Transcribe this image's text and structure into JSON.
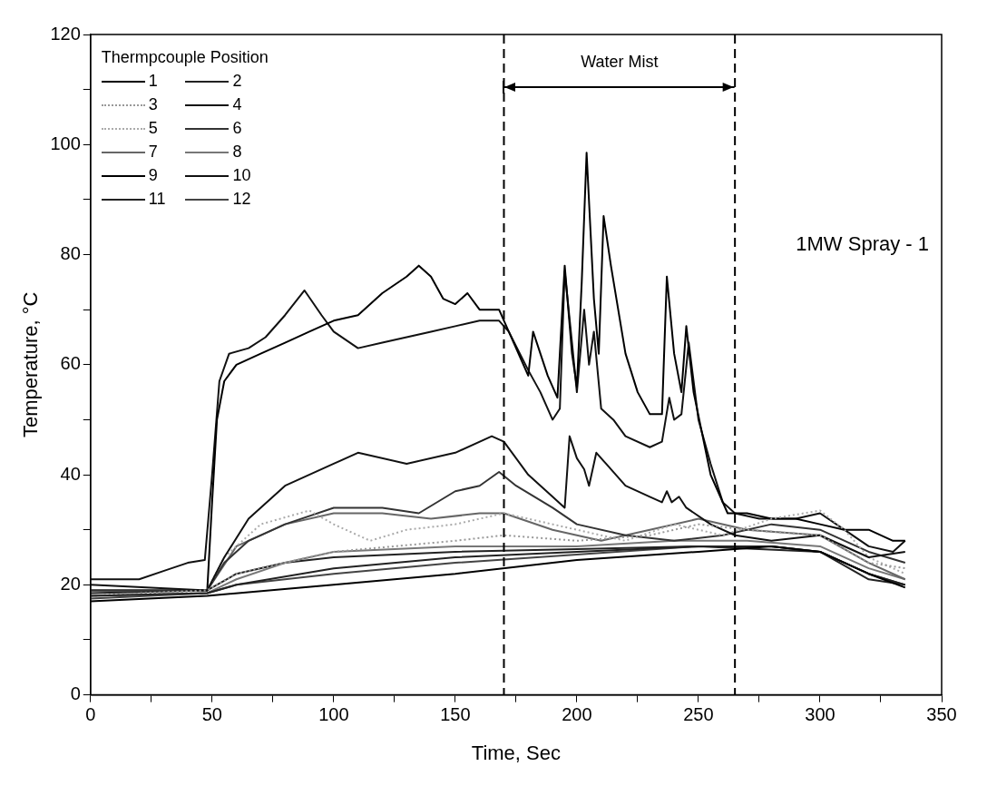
{
  "chart_data": {
    "type": "line",
    "xlabel": "Time, Sec",
    "ylabel": "Temperature, °C",
    "legend_title": "Thermpcouple Position",
    "legend": "top left",
    "grid": false,
    "marker": "none",
    "line_style": "solid",
    "xlim": [
      0,
      350
    ],
    "xticks": [
      0,
      {
        "value": 25,
        "label": null
      },
      50,
      {
        "value": 75,
        "label": null
      },
      100,
      {
        "value": 125,
        "label": null
      },
      150,
      {
        "value": 175,
        "label": null
      },
      200,
      {
        "value": 225,
        "label": null
      },
      250,
      {
        "value": 275,
        "label": null
      },
      300,
      {
        "value": 325,
        "label": null
      },
      350
    ],
    "ylim": [
      0,
      120
    ],
    "yticks": [
      0,
      {
        "value": 10,
        "label": null
      },
      20,
      {
        "value": 30,
        "label": null
      },
      40,
      {
        "value": 50,
        "label": null
      },
      60,
      {
        "value": 70,
        "label": null
      },
      80,
      {
        "value": 90,
        "label": null
      },
      100,
      {
        "value": 110,
        "label": null
      },
      120
    ],
    "ref_lines": [
      {
        "axis": "x",
        "value": 170,
        "line_style": "dashed",
        "color": "#000000"
      },
      {
        "axis": "x",
        "value": 265,
        "line_style": "dashed",
        "color": "#000000"
      }
    ],
    "annotations": [
      "Water Mist",
      "1MW Spray - 1"
    ],
    "series": [
      {
        "name": "1",
        "color": "#000000",
        "x": [
          0,
          48,
          100,
          150,
          200,
          250,
          280,
          300,
          320,
          335
        ],
        "values": [
          17,
          18,
          20,
          22,
          24.5,
          26,
          27,
          26,
          22,
          19.5
        ]
      },
      {
        "name": "2",
        "color": "#222222",
        "x": [
          0,
          48,
          60,
          100,
          150,
          200,
          250,
          300,
          320,
          335
        ],
        "values": [
          18,
          18.5,
          20,
          23,
          25,
          26,
          27,
          26,
          21,
          20
        ]
      },
      {
        "name": "3",
        "color": "#999999",
        "line_style": "dotted",
        "x": [
          0,
          48,
          60,
          100,
          150,
          170,
          200,
          230,
          250,
          270,
          300,
          320,
          335
        ],
        "values": [
          18,
          19,
          22,
          26,
          28,
          29,
          28,
          29,
          31,
          30,
          29,
          24,
          23
        ]
      },
      {
        "name": "4",
        "color": "#111111",
        "x": [
          0,
          48,
          55,
          65,
          80,
          100,
          110,
          130,
          150,
          165,
          170,
          180,
          190,
          195,
          197,
          200,
          203,
          205,
          208,
          212,
          220,
          230,
          235,
          237,
          239,
          242,
          245,
          255,
          265,
          280,
          300,
          320,
          335
        ],
        "values": [
          20,
          19,
          25,
          32,
          38,
          42,
          44,
          42,
          44,
          47,
          46,
          40,
          36,
          34,
          47,
          43,
          41,
          38,
          44,
          42,
          38,
          36,
          35,
          37,
          35,
          36,
          34,
          31,
          29,
          28,
          29,
          25,
          26
        ]
      },
      {
        "name": "5",
        "color": "#aaaaaa",
        "line_style": "dotted",
        "x": [
          0,
          48,
          55,
          70,
          90,
          100,
          115,
          130,
          150,
          170,
          180,
          200,
          220,
          240,
          260,
          280,
          300,
          310,
          320,
          335
        ],
        "values": [
          18,
          19,
          25,
          31,
          33.5,
          31,
          28,
          30,
          31,
          33,
          32,
          30,
          28,
          31,
          29,
          32,
          33.5,
          30,
          25,
          22
        ]
      },
      {
        "name": "6",
        "color": "#333333",
        "x": [
          0,
          48,
          55,
          65,
          80,
          100,
          120,
          135,
          150,
          160,
          168,
          175,
          190,
          200,
          220,
          240,
          260,
          280,
          300,
          320,
          335
        ],
        "values": [
          19,
          19,
          24,
          28,
          31,
          34,
          34,
          33,
          37,
          38,
          40.5,
          38,
          34,
          31,
          29,
          28,
          29,
          31,
          30,
          26,
          24
        ]
      },
      {
        "name": "7",
        "color": "#666666",
        "x": [
          0,
          48,
          60,
          80,
          100,
          120,
          140,
          160,
          170,
          190,
          210,
          230,
          250,
          270,
          300,
          320,
          335
        ],
        "values": [
          19,
          19,
          27,
          31,
          33,
          33,
          32,
          33,
          33,
          30,
          28,
          30,
          32,
          30,
          29,
          24,
          21
        ]
      },
      {
        "name": "8",
        "color": "#777777",
        "x": [
          0,
          48,
          60,
          80,
          100,
          150,
          170,
          200,
          240,
          270,
          300,
          320,
          335
        ],
        "values": [
          18,
          18.5,
          21,
          24,
          26,
          27,
          27,
          27,
          28,
          28,
          27,
          23,
          21
        ]
      },
      {
        "name": "9",
        "color": "#000000",
        "x": [
          0,
          48,
          50,
          52,
          55,
          60,
          70,
          80,
          90,
          100,
          110,
          120,
          130,
          135,
          140,
          145,
          150,
          155,
          160,
          168,
          172,
          180,
          182,
          188,
          192,
          195,
          198,
          200,
          202,
          204,
          207,
          209,
          211,
          214,
          220,
          225,
          230,
          235,
          237,
          240,
          243,
          245,
          248,
          255,
          262,
          270,
          280,
          290,
          300,
          310,
          320,
          330,
          335
        ],
        "values": [
          19,
          19,
          35,
          50,
          57,
          60,
          62,
          64,
          66,
          68,
          69,
          73,
          76,
          78,
          76,
          72,
          71,
          73,
          70,
          70,
          66,
          58,
          66,
          58,
          54,
          78,
          62,
          56,
          75,
          98.5,
          72,
          62,
          87,
          78,
          62,
          55,
          51,
          51,
          76,
          62,
          55,
          67,
          55,
          40,
          33,
          33,
          32,
          32,
          31,
          30,
          30,
          28,
          28
        ]
      },
      {
        "name": "10",
        "color": "#111111",
        "x": [
          0,
          20,
          30,
          40,
          47,
          50,
          53,
          57,
          65,
          72,
          80,
          88,
          95,
          100,
          110,
          120,
          130,
          140,
          150,
          160,
          168,
          172,
          180,
          185,
          190,
          193,
          195,
          198,
          200,
          203,
          205,
          207,
          210,
          215,
          220,
          230,
          235,
          238,
          240,
          243,
          246,
          250,
          255,
          260,
          265,
          275,
          290,
          300,
          310,
          320,
          330,
          335
        ],
        "values": [
          21,
          21,
          22.5,
          24,
          24.5,
          40,
          57,
          62,
          63,
          65,
          69,
          73.5,
          69,
          66,
          63,
          64,
          65,
          66,
          67,
          68,
          68,
          66,
          59,
          55,
          50,
          52,
          77,
          64,
          55,
          70,
          60,
          66,
          52,
          50,
          47,
          45,
          46,
          54,
          50,
          51,
          64,
          50,
          42,
          35,
          33,
          32,
          32,
          33,
          30,
          27,
          26,
          28
        ]
      },
      {
        "name": "11",
        "color": "#222222",
        "x": [
          0,
          48,
          60,
          80,
          100,
          150,
          200,
          250,
          280,
          300,
          320,
          335
        ],
        "values": [
          18.5,
          19,
          22,
          24,
          25,
          26,
          26.5,
          27,
          27,
          26,
          22,
          20
        ]
      },
      {
        "name": "12",
        "color": "#444444",
        "x": [
          0,
          48,
          60,
          100,
          150,
          200,
          250,
          280,
          300,
          320,
          335
        ],
        "values": [
          17.5,
          18.5,
          20,
          22,
          24,
          25.5,
          27,
          27,
          26,
          22,
          20
        ]
      }
    ]
  }
}
